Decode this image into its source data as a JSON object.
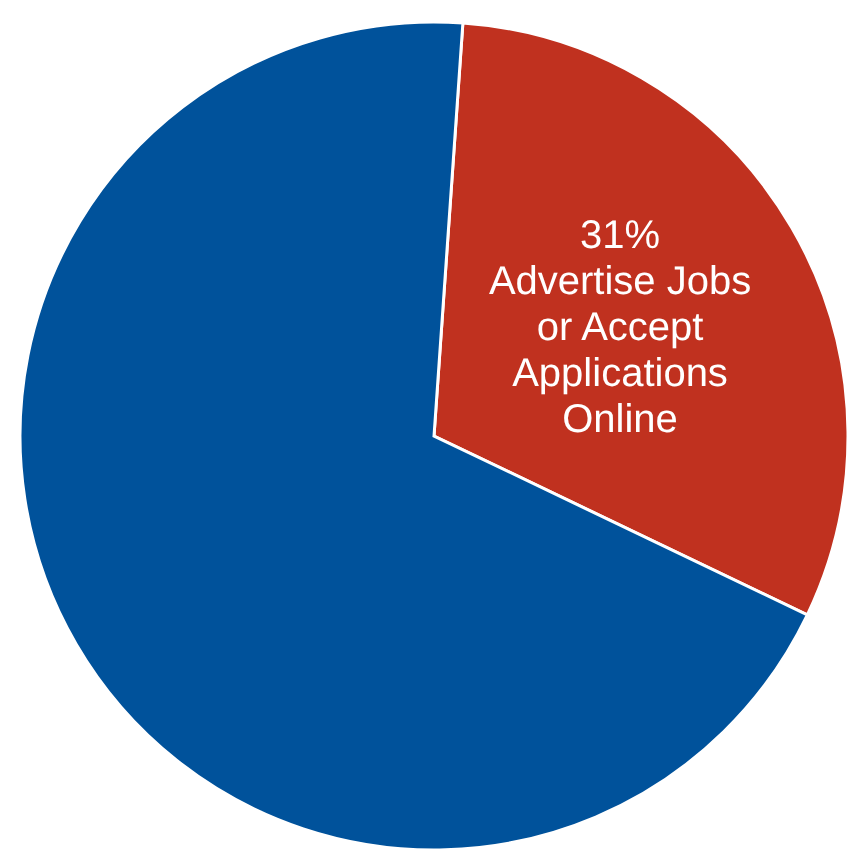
{
  "chart_data": {
    "type": "pie",
    "categories": [
      "Advertise Jobs or Accept Applications Online",
      null
    ],
    "values": [
      31,
      69
    ],
    "colors": [
      "#c0311f",
      "#00529b"
    ],
    "value_labels": [
      "31%",
      null
    ]
  }
}
